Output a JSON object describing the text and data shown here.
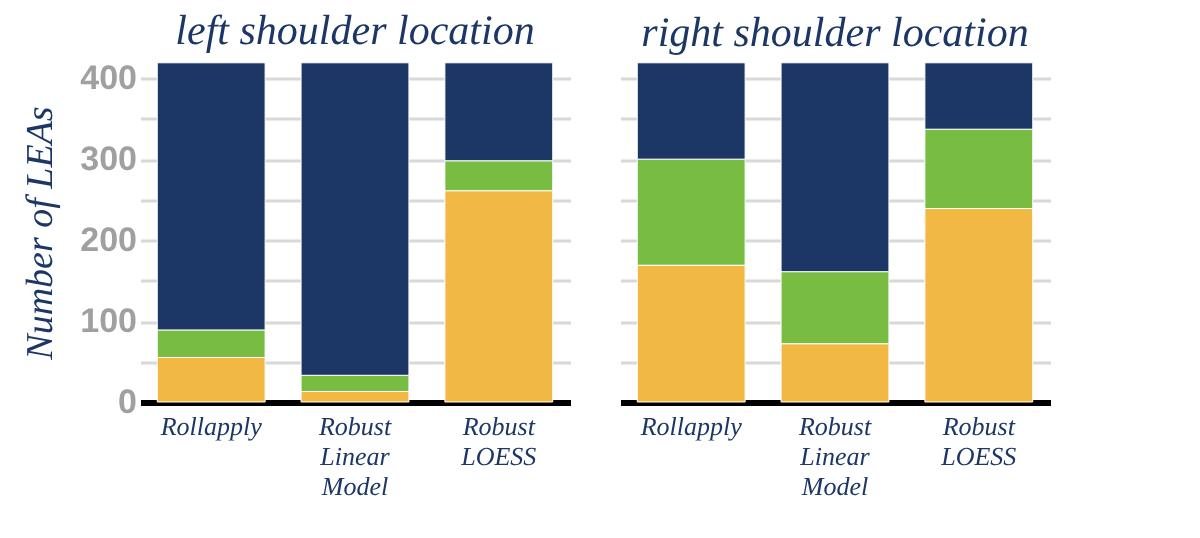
{
  "chart_data": [
    {
      "type": "bar",
      "stacked": true,
      "title": "left shoulder location",
      "ylabel": "Number of LEAs",
      "categories": [
        "Rollapply",
        "Robust Linear Model",
        "Robust LOESS"
      ],
      "series": [
        {
          "color": "#f2b844",
          "values": [
            55,
            13,
            261
          ]
        },
        {
          "color": "#78bc42",
          "values": [
            34,
            20,
            37
          ]
        },
        {
          "color": "#1c3766",
          "values": [
            330,
            386,
            121
          ]
        }
      ],
      "ylim": [
        0,
        420
      ],
      "yticks": [
        0,
        {
          "value": 50,
          "label": null
        },
        100,
        {
          "value": 150,
          "label": null
        },
        200,
        {
          "value": 250,
          "label": null
        },
        300,
        {
          "value": 350,
          "label": null
        },
        400
      ],
      "grid": "y"
    },
    {
      "type": "bar",
      "stacked": true,
      "title": "right shoulder location",
      "categories": [
        "Rollapply",
        "Robust Linear Model",
        "Robust LOESS"
      ],
      "series": [
        {
          "color": "#f2b844",
          "values": [
            169,
            72,
            239
          ]
        },
        {
          "color": "#78bc42",
          "values": [
            131,
            89,
            98
          ]
        },
        {
          "color": "#1c3766",
          "values": [
            119,
            258,
            82
          ]
        }
      ],
      "ylim": [
        0,
        420
      ],
      "yticks": [
        0,
        {
          "value": 50,
          "label": null
        },
        100,
        {
          "value": 150,
          "label": null
        },
        200,
        {
          "value": 250,
          "label": null
        },
        300,
        {
          "value": 350,
          "label": null
        },
        400
      ],
      "grid": "y",
      "tick_labels": "x"
    }
  ]
}
